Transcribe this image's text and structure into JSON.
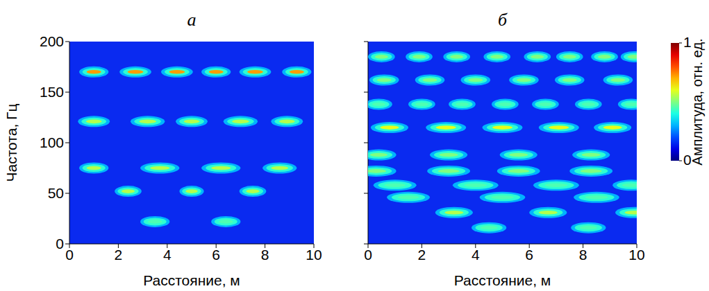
{
  "chart_data": [
    {
      "type": "heatmap",
      "title": "а",
      "x_label": "Расстояние, м",
      "y_label": "Частота, Гц",
      "xlim": [
        0,
        10
      ],
      "ylim": [
        0,
        200
      ],
      "xticks": [
        0,
        2,
        4,
        6,
        8,
        10
      ],
      "yticks": [
        0,
        50,
        100,
        150,
        200
      ],
      "grid": false,
      "blobs": [
        {
          "x": 1.0,
          "y": 170,
          "width": 1.2,
          "amplitude": 0.72
        },
        {
          "x": 2.7,
          "y": 170,
          "width": 1.3,
          "amplitude": 0.72
        },
        {
          "x": 4.4,
          "y": 170,
          "width": 1.3,
          "amplitude": 0.72
        },
        {
          "x": 6.0,
          "y": 170,
          "width": 1.2,
          "amplitude": 0.72
        },
        {
          "x": 7.6,
          "y": 170,
          "width": 1.3,
          "amplitude": 0.72
        },
        {
          "x": 9.3,
          "y": 170,
          "width": 1.2,
          "amplitude": 0.72
        },
        {
          "x": 1.0,
          "y": 121,
          "width": 1.3,
          "amplitude": 0.55
        },
        {
          "x": 3.2,
          "y": 121,
          "width": 1.4,
          "amplitude": 0.55
        },
        {
          "x": 5.0,
          "y": 121,
          "width": 1.3,
          "amplitude": 0.55
        },
        {
          "x": 7.0,
          "y": 121,
          "width": 1.4,
          "amplitude": 0.55
        },
        {
          "x": 8.9,
          "y": 121,
          "width": 1.3,
          "amplitude": 0.55
        },
        {
          "x": 1.0,
          "y": 75,
          "width": 1.2,
          "amplitude": 0.55
        },
        {
          "x": 3.7,
          "y": 75,
          "width": 1.6,
          "amplitude": 0.55
        },
        {
          "x": 6.2,
          "y": 75,
          "width": 1.6,
          "amplitude": 0.55
        },
        {
          "x": 8.6,
          "y": 75,
          "width": 1.4,
          "amplitude": 0.55
        },
        {
          "x": 2.4,
          "y": 52,
          "width": 1.1,
          "amplitude": 0.55
        },
        {
          "x": 5.0,
          "y": 52,
          "width": 1.0,
          "amplitude": 0.55
        },
        {
          "x": 7.5,
          "y": 52,
          "width": 1.1,
          "amplitude": 0.55
        },
        {
          "x": 3.5,
          "y": 22,
          "width": 1.2,
          "amplitude": 0.45
        },
        {
          "x": 6.4,
          "y": 22,
          "width": 1.2,
          "amplitude": 0.45
        }
      ]
    },
    {
      "type": "heatmap",
      "title": "б",
      "x_label": "Расстояние, м",
      "xlim": [
        0,
        10
      ],
      "ylim": [
        0,
        200
      ],
      "xticks": [
        0,
        2,
        4,
        6,
        8,
        10
      ],
      "yticks": [
        0,
        50,
        100,
        150,
        200
      ],
      "grid": false,
      "tick_labels": "x",
      "color_bar": {
        "label": "Амплитуда, отн. ед.",
        "range": [
          0,
          1
        ],
        "ticks": [
          0,
          1
        ]
      },
      "blobs": [
        {
          "x": 0.5,
          "y": 185,
          "width": 1.0,
          "amplitude": 0.5
        },
        {
          "x": 1.9,
          "y": 185,
          "width": 1.0,
          "amplitude": 0.5
        },
        {
          "x": 3.3,
          "y": 185,
          "width": 1.0,
          "amplitude": 0.5
        },
        {
          "x": 4.8,
          "y": 185,
          "width": 1.0,
          "amplitude": 0.5
        },
        {
          "x": 6.3,
          "y": 185,
          "width": 1.0,
          "amplitude": 0.5
        },
        {
          "x": 7.5,
          "y": 185,
          "width": 1.0,
          "amplitude": 0.5
        },
        {
          "x": 8.8,
          "y": 185,
          "width": 1.0,
          "amplitude": 0.5
        },
        {
          "x": 9.9,
          "y": 185,
          "width": 1.0,
          "amplitude": 0.5
        },
        {
          "x": 0.6,
          "y": 162,
          "width": 1.1,
          "amplitude": 0.5
        },
        {
          "x": 2.3,
          "y": 162,
          "width": 1.1,
          "amplitude": 0.5
        },
        {
          "x": 4.0,
          "y": 162,
          "width": 1.1,
          "amplitude": 0.5
        },
        {
          "x": 5.8,
          "y": 162,
          "width": 1.1,
          "amplitude": 0.5
        },
        {
          "x": 7.5,
          "y": 162,
          "width": 1.1,
          "amplitude": 0.5
        },
        {
          "x": 9.3,
          "y": 162,
          "width": 1.1,
          "amplitude": 0.5
        },
        {
          "x": 0.4,
          "y": 138,
          "width": 1.0,
          "amplitude": 0.45
        },
        {
          "x": 2.0,
          "y": 138,
          "width": 1.0,
          "amplitude": 0.45
        },
        {
          "x": 3.5,
          "y": 138,
          "width": 1.0,
          "amplitude": 0.45
        },
        {
          "x": 5.1,
          "y": 138,
          "width": 1.0,
          "amplitude": 0.45
        },
        {
          "x": 6.6,
          "y": 138,
          "width": 1.0,
          "amplitude": 0.45
        },
        {
          "x": 8.2,
          "y": 138,
          "width": 1.0,
          "amplitude": 0.45
        },
        {
          "x": 9.8,
          "y": 138,
          "width": 1.0,
          "amplitude": 0.45
        },
        {
          "x": 0.8,
          "y": 115,
          "width": 1.4,
          "amplitude": 0.6
        },
        {
          "x": 2.9,
          "y": 115,
          "width": 1.5,
          "amplitude": 0.6
        },
        {
          "x": 5.0,
          "y": 115,
          "width": 1.5,
          "amplitude": 0.6
        },
        {
          "x": 7.1,
          "y": 115,
          "width": 1.5,
          "amplitude": 0.6
        },
        {
          "x": 9.1,
          "y": 115,
          "width": 1.4,
          "amplitude": 0.6
        },
        {
          "x": 0.4,
          "y": 88,
          "width": 1.3,
          "amplitude": 0.5
        },
        {
          "x": 3.0,
          "y": 88,
          "width": 1.4,
          "amplitude": 0.5
        },
        {
          "x": 5.6,
          "y": 88,
          "width": 1.4,
          "amplitude": 0.5
        },
        {
          "x": 8.3,
          "y": 88,
          "width": 1.4,
          "amplitude": 0.5
        },
        {
          "x": 0.3,
          "y": 72,
          "width": 1.5,
          "amplitude": 0.5
        },
        {
          "x": 3.0,
          "y": 72,
          "width": 1.6,
          "amplitude": 0.5
        },
        {
          "x": 5.6,
          "y": 72,
          "width": 1.6,
          "amplitude": 0.5
        },
        {
          "x": 8.3,
          "y": 72,
          "width": 1.6,
          "amplitude": 0.5
        },
        {
          "x": 1.0,
          "y": 58,
          "width": 1.6,
          "amplitude": 0.45
        },
        {
          "x": 4.0,
          "y": 58,
          "width": 1.7,
          "amplitude": 0.45
        },
        {
          "x": 7.0,
          "y": 58,
          "width": 1.7,
          "amplitude": 0.45
        },
        {
          "x": 9.8,
          "y": 58,
          "width": 1.4,
          "amplitude": 0.45
        },
        {
          "x": 1.5,
          "y": 46,
          "width": 1.6,
          "amplitude": 0.45
        },
        {
          "x": 5.0,
          "y": 46,
          "width": 1.7,
          "amplitude": 0.45
        },
        {
          "x": 8.5,
          "y": 46,
          "width": 1.7,
          "amplitude": 0.45
        },
        {
          "x": 3.2,
          "y": 31,
          "width": 1.4,
          "amplitude": 0.55
        },
        {
          "x": 6.7,
          "y": 31,
          "width": 1.4,
          "amplitude": 0.55
        },
        {
          "x": 9.9,
          "y": 31,
          "width": 1.4,
          "amplitude": 0.55
        },
        {
          "x": 4.5,
          "y": 16,
          "width": 1.3,
          "amplitude": 0.45
        },
        {
          "x": 8.2,
          "y": 16,
          "width": 1.3,
          "amplitude": 0.45
        }
      ]
    }
  ]
}
